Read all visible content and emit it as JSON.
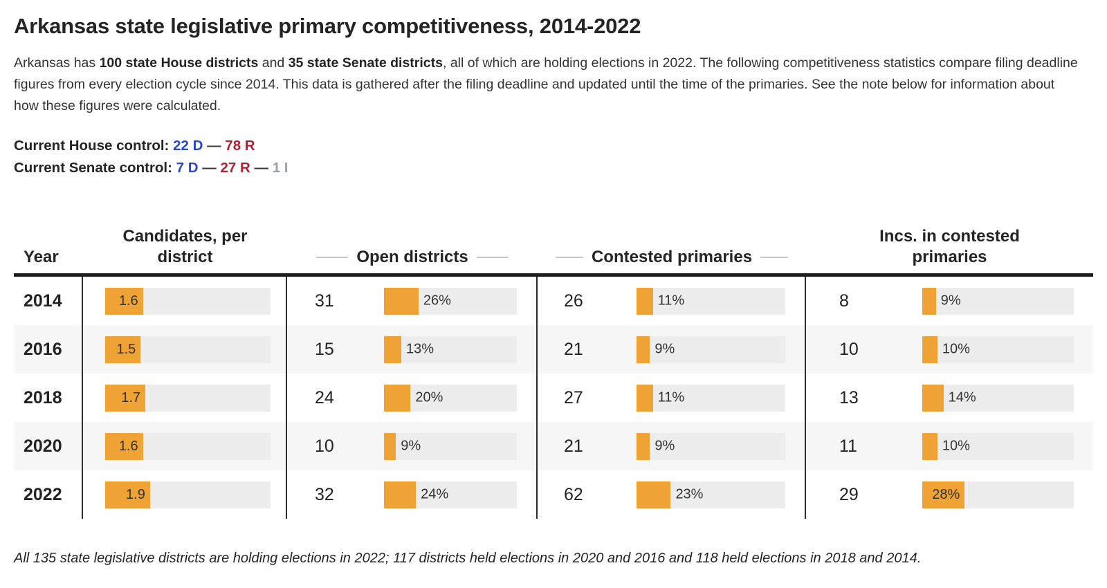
{
  "title": "Arkansas state legislative primary competitiveness, 2014-2022",
  "intro": {
    "part1": "Arkansas has ",
    "bold_house": "100 state House districts",
    "part2": " and ",
    "bold_senate": "35 state Senate districts",
    "part3": ", all of which are holding elections in 2022. The following competitiveness statistics compare filing deadline figures from every election cycle since 2014. This data is gathered after the filing deadline and updated until the time of the primaries. See the note below for information about how these figures were calculated."
  },
  "control": {
    "house_label": "Current House control:",
    "house_dem": "22 D",
    "house_rep": "78 R",
    "senate_label": "Current Senate control:",
    "senate_dem": "7 D",
    "senate_rep": "27 R",
    "senate_ind": "1 I",
    "separator": "—"
  },
  "table": {
    "headers": {
      "year": "Year",
      "candidates": "Candidates, per district",
      "open": "Open districts",
      "contested": "Contested primaries",
      "incs": "Incs. in contested primaries"
    },
    "rows": [
      {
        "year": "2014",
        "candidates": {
          "value": 1.6,
          "label": "1.6"
        },
        "open": {
          "count": "31",
          "pct": 26,
          "label": "26%"
        },
        "contested": {
          "count": "26",
          "pct": 11,
          "label": "11%"
        },
        "incs": {
          "count": "8",
          "pct": 9,
          "label": "9%"
        }
      },
      {
        "year": "2016",
        "candidates": {
          "value": 1.5,
          "label": "1.5"
        },
        "open": {
          "count": "15",
          "pct": 13,
          "label": "13%"
        },
        "contested": {
          "count": "21",
          "pct": 9,
          "label": "9%"
        },
        "incs": {
          "count": "10",
          "pct": 10,
          "label": "10%"
        }
      },
      {
        "year": "2018",
        "candidates": {
          "value": 1.7,
          "label": "1.7"
        },
        "open": {
          "count": "24",
          "pct": 20,
          "label": "20%"
        },
        "contested": {
          "count": "27",
          "pct": 11,
          "label": "11%"
        },
        "incs": {
          "count": "13",
          "pct": 14,
          "label": "14%"
        }
      },
      {
        "year": "2020",
        "candidates": {
          "value": 1.6,
          "label": "1.6"
        },
        "open": {
          "count": "10",
          "pct": 9,
          "label": "9%"
        },
        "contested": {
          "count": "21",
          "pct": 9,
          "label": "9%"
        },
        "incs": {
          "count": "11",
          "pct": 10,
          "label": "10%"
        }
      },
      {
        "year": "2022",
        "candidates": {
          "value": 1.9,
          "label": "1.9"
        },
        "open": {
          "count": "32",
          "pct": 24,
          "label": "24%"
        },
        "contested": {
          "count": "62",
          "pct": 23,
          "label": "23%"
        },
        "incs": {
          "count": "29",
          "pct": 28,
          "label": "28%"
        }
      }
    ]
  },
  "footnote": "All 135 state legislative districts are holding elections in 2022; 117 districts held elections in 2020 and 2016 and 118 held elections in 2018 and 2014.",
  "colors": {
    "bar_orange": "#F0A335",
    "bar_track": "#ECECEC",
    "dem_blue": "#2847CE",
    "rep_red": "#AD2230",
    "ind_gray": "#9AA0A6",
    "alt_row_bg": "#F6F6F7",
    "header_border": "#1F1F1F"
  },
  "chart_data": {
    "type": "table",
    "title": "Arkansas state legislative primary competitiveness, 2014-2022",
    "columns": [
      "Year",
      "Candidates, per district",
      "Open districts (count)",
      "Open districts (%)",
      "Contested primaries (count)",
      "Contested primaries (%)",
      "Incs. in contested primaries (count)",
      "Incs. in contested primaries (%)"
    ],
    "rows": [
      [
        "2014",
        1.6,
        31,
        26,
        26,
        11,
        8,
        9
      ],
      [
        "2016",
        1.5,
        15,
        13,
        21,
        9,
        10,
        10
      ],
      [
        "2018",
        1.7,
        24,
        20,
        27,
        11,
        13,
        14
      ],
      [
        "2020",
        1.6,
        10,
        9,
        21,
        9,
        11,
        10
      ],
      [
        "2022",
        1.9,
        32,
        24,
        62,
        23,
        29,
        28
      ]
    ],
    "bar_scale_hint": {
      "candidates_per_district_max": 7,
      "percent_max": 100
    }
  }
}
